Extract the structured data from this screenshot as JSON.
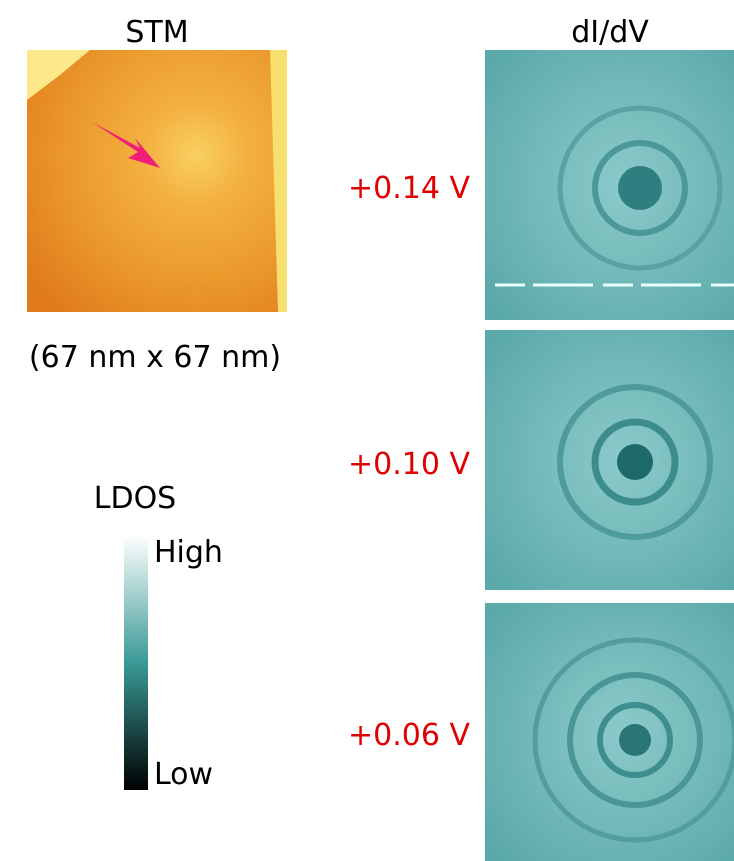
{
  "stm_panel": {
    "title": "STM",
    "caption": "(67 nm x 67 nm)"
  },
  "didv_panel": {
    "title": "dI/dV",
    "voltages": [
      "+0.14 V",
      "+0.10 V",
      "+0.06 V"
    ]
  },
  "colorbar": {
    "title": "LDOS",
    "high": "High",
    "low": "Low"
  }
}
